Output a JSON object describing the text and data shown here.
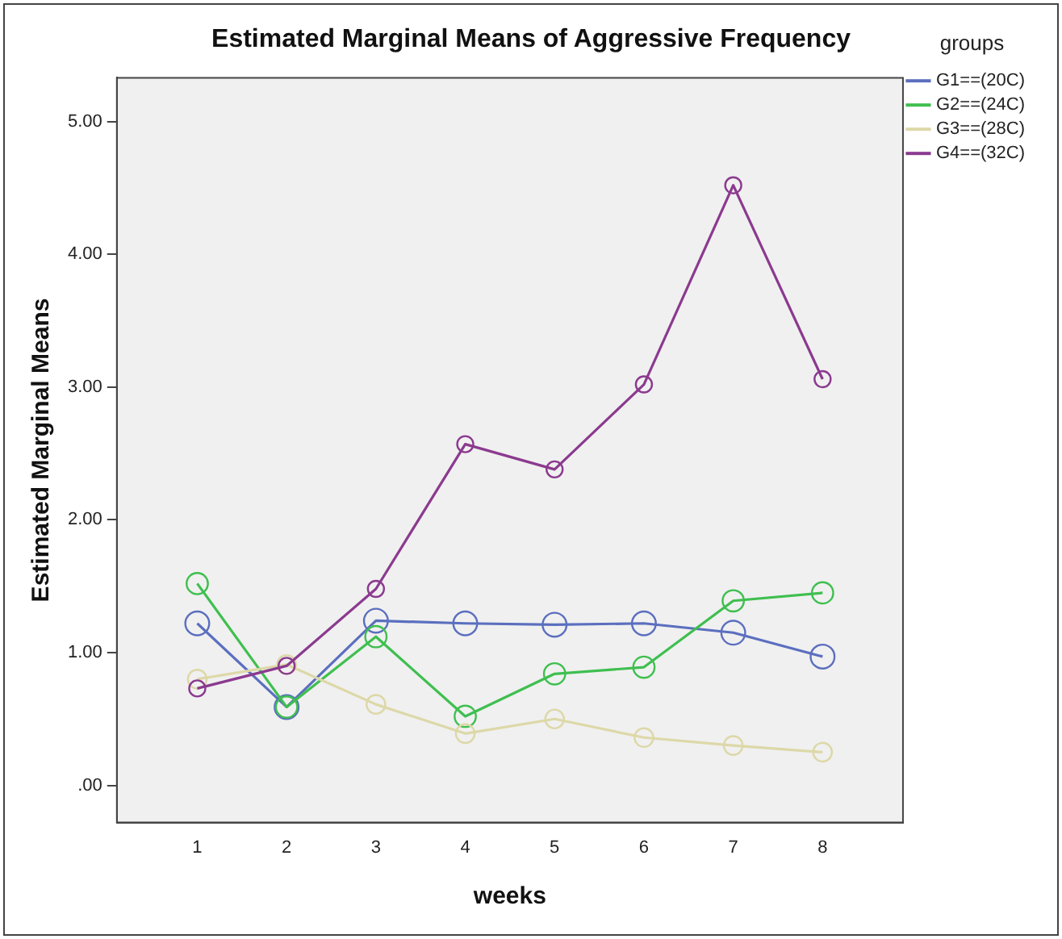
{
  "chart_data": {
    "type": "line",
    "title": "Estimated Marginal Means of Aggressive Frequency",
    "xlabel": "weeks",
    "ylabel": "Estimated Marginal Means",
    "legend_title": "groups",
    "x": [
      1,
      2,
      3,
      4,
      5,
      6,
      7,
      8
    ],
    "series": [
      {
        "name": "G1==(20C)",
        "color": "#5b6fbf",
        "values": [
          1.22,
          0.59,
          1.24,
          1.22,
          1.21,
          1.22,
          1.15,
          0.97
        ]
      },
      {
        "name": "G2==(24C)",
        "color": "#3fbf4f",
        "values": [
          1.52,
          0.59,
          1.12,
          0.52,
          0.84,
          0.89,
          1.39,
          1.45
        ]
      },
      {
        "name": "G3==(28C)",
        "color": "#ddd8a8",
        "values": [
          0.8,
          0.91,
          0.61,
          0.39,
          0.5,
          0.36,
          0.3,
          0.25
        ]
      },
      {
        "name": "G4==(32C)",
        "color": "#8b3a8f",
        "values": [
          0.73,
          0.9,
          1.48,
          2.57,
          2.38,
          3.02,
          4.52,
          3.06
        ]
      }
    ],
    "xlim": [
      0.1,
      8.9
    ],
    "xticks": [
      1,
      2,
      3,
      4,
      5,
      6,
      7,
      8
    ],
    "ylim": [
      -0.28,
      5.33
    ],
    "yticks": [
      {
        "value": 0,
        "label": ".00"
      },
      {
        "value": 1,
        "label": "1.00"
      },
      {
        "value": 2,
        "label": "2.00"
      },
      {
        "value": 3,
        "label": "3.00"
      },
      {
        "value": 4,
        "label": "4.00"
      },
      {
        "value": 5,
        "label": "5.00"
      }
    ],
    "grid": false,
    "legend": "top right",
    "marker": "circle",
    "line_style": "solid"
  }
}
